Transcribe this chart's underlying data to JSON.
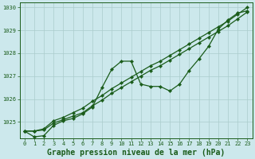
{
  "background_color": "#cce8ec",
  "grid_color": "#aacccc",
  "line_color": "#1a5c1a",
  "xlabel": "Graphe pression niveau de la mer (hPa)",
  "xlabel_color": "#1a5c1a",
  "ylim": [
    1024.3,
    1030.2
  ],
  "xlim": [
    -0.5,
    23.5
  ],
  "yticks": [
    1025,
    1026,
    1027,
    1028,
    1029,
    1030
  ],
  "xticks": [
    0,
    1,
    2,
    3,
    4,
    5,
    6,
    7,
    8,
    9,
    10,
    11,
    12,
    13,
    14,
    15,
    16,
    17,
    18,
    19,
    20,
    21,
    22,
    23
  ],
  "series_wavy": [
    1024.6,
    1024.35,
    1024.4,
    1024.85,
    1025.05,
    1025.15,
    1025.35,
    1025.65,
    1026.5,
    1027.3,
    1027.65,
    1027.65,
    1026.65,
    1026.55,
    1026.55,
    1026.35,
    1026.65,
    1027.25,
    1027.75,
    1028.3,
    1029.05,
    1029.45,
    1029.75,
    1029.85
  ],
  "series_line1": [
    1024.6,
    1024.6,
    1024.65,
    1024.95,
    1025.1,
    1025.25,
    1025.4,
    1025.7,
    1025.95,
    1026.25,
    1026.5,
    1026.75,
    1027.0,
    1027.25,
    1027.45,
    1027.7,
    1027.95,
    1028.2,
    1028.45,
    1028.7,
    1028.95,
    1029.2,
    1029.5,
    1029.8
  ],
  "series_line2": [
    1024.6,
    1024.6,
    1024.7,
    1025.05,
    1025.2,
    1025.4,
    1025.6,
    1025.9,
    1026.15,
    1026.45,
    1026.7,
    1026.95,
    1027.2,
    1027.45,
    1027.65,
    1027.9,
    1028.15,
    1028.4,
    1028.65,
    1028.9,
    1029.15,
    1029.4,
    1029.7,
    1030.0
  ],
  "tick_fontsize": 5.0,
  "xlabel_fontsize": 7.0
}
